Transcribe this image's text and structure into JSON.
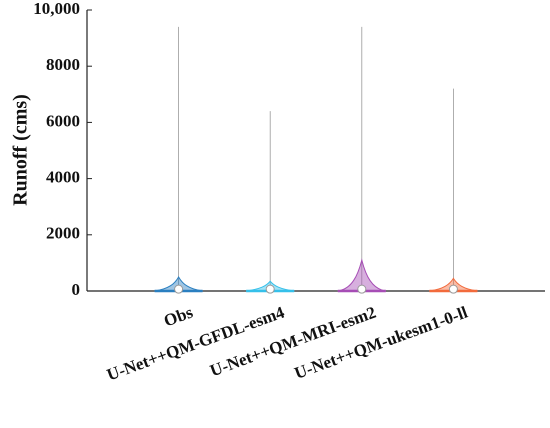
{
  "chart_data": {
    "type": "violin",
    "y_label": "Runoff (cms)",
    "categories": [
      "Obs",
      "U-Net++QM-GFDL-esm4",
      "U-Net++QM-MRI-esm2",
      "U-Net++QM-ukesm1-0-ll"
    ],
    "colors": [
      "#2a7fc0",
      "#35c0ea",
      "#a64db5",
      "#f26a3c"
    ],
    "max": [
      9400,
      6400,
      9400,
      7200
    ],
    "upper": [
      500,
      350,
      1100,
      450
    ],
    "median": [
      30,
      30,
      30,
      30
    ],
    "ylim": [
      0,
      10000
    ],
    "yticks": [
      0,
      2000,
      4000,
      6000,
      8000,
      {
        "value": 10000,
        "label": "10,000"
      }
    ]
  }
}
